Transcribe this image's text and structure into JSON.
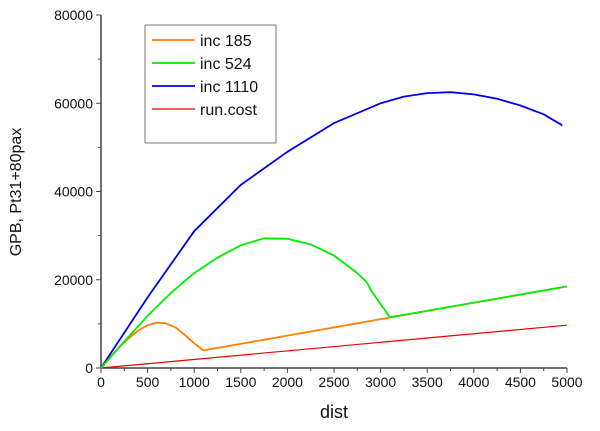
{
  "chart_data": {
    "type": "line",
    "title": "",
    "xlabel": "dist",
    "ylabel": "GPB, Pt31+80pax",
    "xlim": [
      0,
      5000
    ],
    "ylim": [
      0,
      80000
    ],
    "xticks": [
      0,
      500,
      1000,
      1500,
      2000,
      2500,
      3000,
      3500,
      4000,
      4500,
      5000
    ],
    "yticks": [
      0,
      20000,
      40000,
      60000,
      80000
    ],
    "grid": false,
    "legend_position": "top-left",
    "series": [
      {
        "name": "inc 185",
        "color": "#ff8000",
        "x": [
          0,
          100,
          200,
          300,
          400,
          500,
          600,
          700,
          800,
          900,
          1000,
          1100,
          5000
        ],
        "y": [
          0,
          2500,
          4800,
          6800,
          8500,
          9700,
          10300,
          10100,
          9200,
          7500,
          5600,
          4000,
          18500
        ]
      },
      {
        "name": "inc 524",
        "color": "#00ee00",
        "x": [
          0,
          250,
          500,
          750,
          1000,
          1250,
          1500,
          1750,
          2000,
          2250,
          2500,
          2750,
          2850,
          2900,
          3100,
          5000
        ],
        "y": [
          0,
          6000,
          11800,
          17000,
          21500,
          25000,
          27800,
          29400,
          29300,
          28000,
          25500,
          21500,
          19500,
          17500,
          11500,
          18500
        ]
      },
      {
        "name": "inc 1110",
        "color": "#0000ee",
        "x": [
          0,
          500,
          1000,
          1500,
          2000,
          2500,
          3000,
          3250,
          3500,
          3750,
          4000,
          4250,
          4500,
          4750,
          4950
        ],
        "y": [
          0,
          16000,
          31000,
          41500,
          49000,
          55500,
          60000,
          61500,
          62300,
          62500,
          62000,
          61000,
          59500,
          57500,
          55000
        ]
      },
      {
        "name": "run.cost",
        "color": "#ee0000",
        "x": [
          0,
          5000
        ],
        "y": [
          0,
          9700
        ]
      }
    ]
  }
}
